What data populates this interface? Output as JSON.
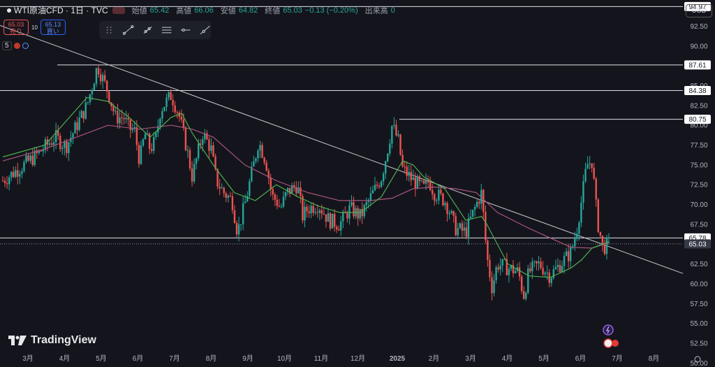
{
  "header": {
    "symbol": "WTI原油CFD · 1日 · TVC",
    "open_label": "始値",
    "open": "65.42",
    "high_label": "高値",
    "high": "66.06",
    "low_label": "安値",
    "low": "64.82",
    "close_label": "終値",
    "close": "65.03",
    "change": "−0.13 (−0.20%)",
    "volume_label": "出来高",
    "volume": "0"
  },
  "trade": {
    "sell_price": "65.03",
    "sell_label": "売り",
    "spread": "10",
    "buy_price": "65.13",
    "buy_label": "買い"
  },
  "indicator": {
    "value": "5"
  },
  "currency": "USD",
  "logo_text": "TradingView",
  "colors": {
    "up": "#26a69a",
    "down": "#ef5350",
    "ma_fast": "#4caf50",
    "ma_slow": "#a8557d",
    "background": "#14151c"
  },
  "chart_data": {
    "type": "candlestick",
    "x_ticks": [
      "3月",
      "4月",
      "5月",
      "6月",
      "7月",
      "8月",
      "9月",
      "10月",
      "11月",
      "12月",
      "2025",
      "2月",
      "3月",
      "4月",
      "5月",
      "6月",
      "7月",
      "8月"
    ],
    "y_ticks": [
      50.0,
      52.5,
      55.0,
      57.5,
      60.0,
      62.5,
      67.5,
      70.0,
      72.5,
      75.0,
      77.5,
      80.0,
      82.5,
      85.0,
      90.0,
      92.5
    ],
    "ylim": [
      49.5,
      95.8
    ],
    "price_line": 65.03,
    "horizontal_levels": [
      94.97,
      87.61,
      84.38,
      80.75,
      65.78
    ],
    "level_label_values": [
      "94.97",
      "87.61",
      "84.38",
      "80.75",
      "65.78",
      "65.03"
    ],
    "close_path": [
      [
        0,
        73.0
      ],
      [
        3,
        76.0
      ],
      [
        5,
        78.5
      ],
      [
        6,
        77.3
      ],
      [
        8,
        82.5
      ],
      [
        9,
        87.5
      ],
      [
        10,
        84.2
      ],
      [
        10.7,
        81.0
      ],
      [
        11.5,
        81.0
      ],
      [
        12,
        79.5
      ],
      [
        12.5,
        79.5
      ],
      [
        13,
        75.5
      ],
      [
        13.5,
        79.0
      ],
      [
        14,
        77.0
      ],
      [
        14.5,
        78.0
      ],
      [
        15,
        82.0
      ],
      [
        16,
        83.8
      ],
      [
        16.7,
        81.5
      ],
      [
        17.5,
        77.0
      ],
      [
        18,
        73.5
      ],
      [
        19,
        79.0
      ],
      [
        19.8,
        77.0
      ],
      [
        20.3,
        73.0
      ],
      [
        21,
        71.5
      ],
      [
        21.8,
        70.5
      ],
      [
        22.3,
        66.5
      ],
      [
        23,
        70.0
      ],
      [
        24,
        76.0
      ],
      [
        24.3,
        78.0
      ],
      [
        25,
        75.5
      ],
      [
        25.6,
        71.0
      ],
      [
        26,
        70.5
      ],
      [
        26.4,
        69.5
      ],
      [
        27,
        71.5
      ],
      [
        28,
        72.5
      ],
      [
        28.5,
        68.5
      ],
      [
        29,
        69.5
      ],
      [
        30,
        70.0
      ],
      [
        31,
        68.0
      ],
      [
        32,
        67.5
      ],
      [
        33,
        69.5
      ],
      [
        34,
        68.5
      ],
      [
        35,
        71.0
      ],
      [
        36,
        73.5
      ],
      [
        36.5,
        76.5
      ],
      [
        37,
        80.0
      ],
      [
        37.6,
        78.0
      ],
      [
        38,
        74.5
      ],
      [
        39,
        73.0
      ],
      [
        40,
        72.0
      ],
      [
        40.5,
        73.0
      ],
      [
        41,
        71.5
      ],
      [
        42,
        70.5
      ],
      [
        42.5,
        69.0
      ],
      [
        43,
        67.0
      ],
      [
        44,
        66.5
      ],
      [
        45,
        70.0
      ],
      [
        45.5,
        71.5
      ],
      [
        46,
        63.5
      ],
      [
        46.5,
        59.5
      ],
      [
        47,
        62.5
      ],
      [
        48,
        62.0
      ],
      [
        49,
        61.5
      ],
      [
        49.5,
        58.5
      ],
      [
        50,
        61.5
      ],
      [
        51,
        62.5
      ],
      [
        52,
        61.0
      ],
      [
        53,
        62.5
      ],
      [
        54,
        64.0
      ],
      [
        54.5,
        66.5
      ],
      [
        55,
        70.5
      ],
      [
        55.5,
        75.0
      ],
      [
        56,
        75.5
      ],
      [
        56.5,
        68.0
      ],
      [
        56.8,
        66.0
      ],
      [
        57,
        64.5
      ],
      [
        57.6,
        65.03
      ]
    ],
    "ma_fast": [
      [
        0,
        76.0
      ],
      [
        4,
        77.5
      ],
      [
        8,
        83.5
      ],
      [
        10,
        83.0
      ],
      [
        12,
        81.0
      ],
      [
        14,
        78.5
      ],
      [
        16,
        81.0
      ],
      [
        17,
        81.5
      ],
      [
        18,
        79.0
      ],
      [
        20,
        75.0
      ],
      [
        22,
        71.5
      ],
      [
        24,
        70.5
      ],
      [
        26,
        72.5
      ],
      [
        28,
        71.0
      ],
      [
        30,
        69.8
      ],
      [
        32,
        69.0
      ],
      [
        34,
        69.0
      ],
      [
        36,
        71.0
      ],
      [
        38,
        75.5
      ],
      [
        39,
        75.0
      ],
      [
        40,
        73.5
      ],
      [
        42,
        72.0
      ],
      [
        44,
        68.0
      ],
      [
        45.5,
        68.5
      ],
      [
        46,
        67.5
      ],
      [
        48,
        62.5
      ],
      [
        50,
        61.0
      ],
      [
        52,
        60.8
      ],
      [
        54,
        62.0
      ],
      [
        55,
        63.0
      ],
      [
        56,
        64.5
      ],
      [
        57.6,
        65.3
      ]
    ],
    "ma_slow": [
      [
        0,
        75.5
      ],
      [
        4,
        77.0
      ],
      [
        7,
        78.5
      ],
      [
        10,
        80.0
      ],
      [
        13,
        79.5
      ],
      [
        16,
        80.0
      ],
      [
        18,
        79.5
      ],
      [
        20,
        78.5
      ],
      [
        23,
        75.0
      ],
      [
        26,
        73.0
      ],
      [
        29,
        71.5
      ],
      [
        32,
        70.5
      ],
      [
        35,
        70.5
      ],
      [
        37,
        70.8
      ],
      [
        39,
        72.0
      ],
      [
        41,
        72.2
      ],
      [
        43,
        72.0
      ],
      [
        45,
        71.5
      ],
      [
        47,
        69.0
      ],
      [
        50,
        67.0
      ],
      [
        52,
        65.8
      ],
      [
        54,
        64.6
      ],
      [
        56,
        64.5
      ],
      [
        57.6,
        65.2
      ]
    ]
  }
}
